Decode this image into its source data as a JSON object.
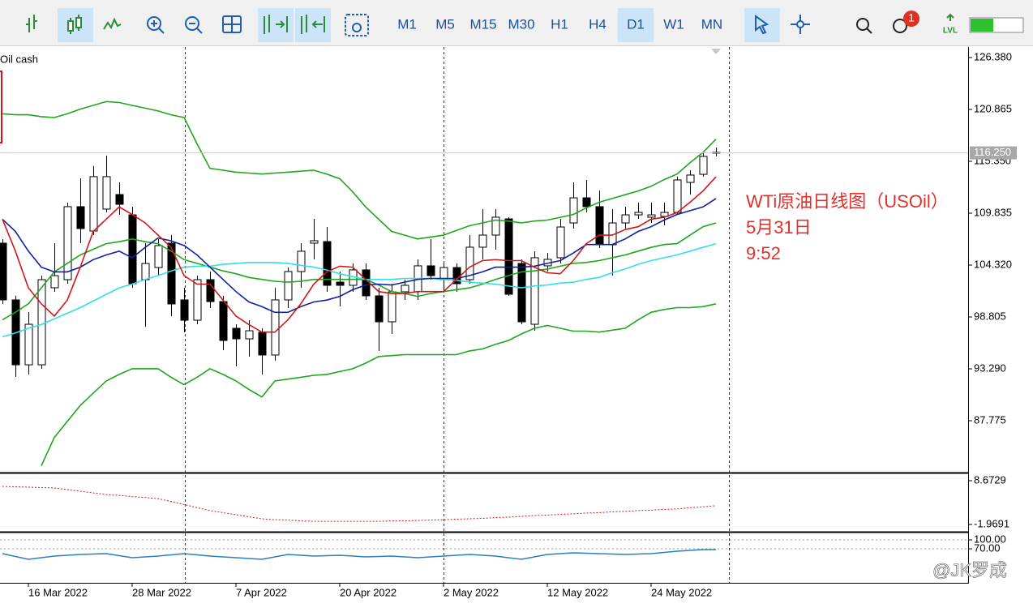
{
  "toolbar": {
    "timeframes": [
      "M1",
      "M5",
      "M15",
      "M30",
      "H1",
      "H4",
      "D1",
      "W1",
      "MN"
    ],
    "active": 6,
    "notifications": 1,
    "level_label": "LVL"
  },
  "watermark": "@JK罗成",
  "chart_data": [
    {
      "type": "candlestick",
      "title": "Oil cash",
      "annotations": [
        "WTi原油日线图（USOil）",
        "5月31日",
        "9:52"
      ],
      "categories": [
        null,
        null,
        "16 Mar 2022",
        null,
        null,
        null,
        null,
        null,
        null,
        null,
        "28 Mar 2022",
        null,
        null,
        null,
        null,
        null,
        null,
        null,
        "7 Apr 2022",
        null,
        null,
        null,
        null,
        null,
        null,
        null,
        "20 Apr 2022",
        null,
        null,
        null,
        null,
        null,
        null,
        null,
        "2 May 2022",
        null,
        null,
        null,
        null,
        null,
        null,
        null,
        "12 May 2022",
        null,
        null,
        null,
        null,
        null,
        null,
        null,
        "24 May 2022",
        null,
        null,
        null,
        null,
        null
      ],
      "open": [
        106.65,
        100.62,
        93.72,
        93.72,
        101.91,
        102.77,
        110.53,
        107.94,
        110.27,
        111.82,
        109.66,
        102.77,
        104.06,
        106.65,
        100.62,
        98.46,
        102.77,
        100.44,
        97.6,
        96.48,
        97.17,
        94.76,
        100.62,
        103.63,
        106.65,
        106.82,
        102.51,
        102.17,
        103.81,
        101.05,
        98.29,
        101.48,
        101.48,
        104.24,
        102.77,
        104.06,
        102.77,
        106.22,
        107.51,
        109.23,
        104.49,
        98.03,
        104.24,
        105.1,
        108.8,
        111.47,
        110.53,
        106.48,
        108.8,
        109.66,
        109.41,
        109.49,
        109.92,
        113.11,
        113.97,
        116.3
      ],
      "high": [
        107.08,
        101.05,
        99.32,
        103.2,
        106.65,
        110.96,
        113.54,
        114.84,
        115.96,
        113.11,
        110.53,
        106.65,
        107.08,
        107.51,
        101.91,
        103.2,
        103.63,
        101.05,
        98.03,
        98.46,
        97.6,
        101.91,
        104.06,
        106.65,
        109.23,
        108.37,
        103.63,
        104.49,
        104.49,
        101.91,
        102.34,
        102.77,
        104.93,
        107.08,
        104.49,
        104.49,
        107.51,
        110.27,
        110.27,
        109.41,
        104.93,
        105.79,
        105.61,
        109.23,
        113.11,
        113.37,
        112.25,
        110.27,
        110.53,
        110.96,
        110.96,
        110.96,
        113.72,
        114.4,
        116.3,
        116.82
      ],
      "low": [
        100.19,
        92.43,
        92.69,
        93.29,
        101.48,
        102.34,
        106.65,
        107.51,
        109.92,
        109.66,
        101.91,
        97.77,
        103.2,
        98.89,
        97.17,
        98.03,
        99.76,
        95.27,
        93.55,
        94.59,
        92.69,
        94.15,
        99.76,
        101.91,
        104.93,
        101.48,
        99.93,
        101.48,
        100.62,
        95.19,
        97.0,
        100.62,
        100.62,
        102.77,
        101.48,
        101.48,
        102.34,
        104.93,
        105.96,
        101.05,
        98.03,
        97.34,
        103.63,
        104.49,
        108.2,
        109.92,
        106.13,
        103.2,
        108.2,
        109.23,
        108.8,
        108.54,
        109.66,
        111.82,
        113.72,
        115.87
      ],
      "close": [
        100.62,
        93.72,
        98.03,
        102.77,
        103.2,
        110.53,
        108.2,
        113.72,
        113.72,
        110.78,
        102.34,
        104.49,
        106.39,
        100.19,
        98.46,
        102.77,
        100.44,
        96.31,
        96.48,
        97.34,
        94.76,
        100.62,
        103.63,
        105.79,
        106.91,
        102.17,
        102.17,
        103.81,
        101.05,
        98.29,
        101.48,
        102.17,
        104.24,
        103.2,
        104.06,
        102.34,
        106.22,
        107.51,
        109.41,
        101.22,
        98.29,
        105.1,
        104.93,
        108.37,
        111.47,
        110.53,
        106.48,
        108.8,
        109.66,
        109.92,
        109.66,
        109.92,
        113.37,
        113.89,
        115.87,
        116.25
      ],
      "up_color": "#ffffff",
      "down_color": "#000000",
      "series": [
        {
          "color": "#1fa51f",
          "values": [
            120.4,
            120.3,
            120.3,
            120.1,
            120.0,
            120.4,
            120.9,
            121.3,
            121.7,
            121.6,
            121.3,
            121.0,
            120.7,
            120.3,
            120.0,
            117.2,
            114.6,
            114.4,
            114.2,
            114.1,
            114.0,
            114.1,
            114.2,
            114.3,
            114.4,
            114.0,
            113.5,
            112.1,
            110.5,
            109.2,
            107.9,
            107.5,
            107.1,
            107.3,
            107.5,
            108.0,
            108.5,
            108.8,
            109.1,
            109.0,
            108.8,
            109.0,
            109.1,
            109.4,
            109.7,
            110.4,
            111.0,
            111.4,
            111.8,
            112.2,
            112.7,
            113.4,
            114.0,
            115.2,
            116.3,
            117.7
          ]
        },
        {
          "color": "#1fa51f",
          "values": [
            98.5,
            99.3,
            100.2,
            101.9,
            103.6,
            104.5,
            105.4,
            106.0,
            106.6,
            106.8,
            107.1,
            106.8,
            106.6,
            105.8,
            104.9,
            104.5,
            104.1,
            103.7,
            103.4,
            103.0,
            102.8,
            102.6,
            102.5,
            102.6,
            102.8,
            102.8,
            102.8,
            102.8,
            102.8,
            102.2,
            101.5,
            101.3,
            101.0,
            101.3,
            101.5,
            101.7,
            101.9,
            102.3,
            102.8,
            103.2,
            103.6,
            103.7,
            103.9,
            104.2,
            104.5,
            104.6,
            104.8,
            105.1,
            105.4,
            105.8,
            106.2,
            106.5,
            106.6,
            107.5,
            108.4,
            108.8
          ]
        },
        {
          "color": "#1fa51f",
          "values": [
            null,
            null,
            null,
            83.0,
            86.0,
            87.7,
            89.4,
            90.7,
            92.0,
            92.7,
            93.3,
            93.3,
            93.3,
            92.4,
            91.6,
            92.4,
            93.3,
            92.7,
            92.0,
            91.1,
            90.3,
            92.0,
            92.2,
            92.4,
            92.6,
            92.7,
            93.0,
            93.3,
            93.9,
            94.6,
            94.7,
            94.8,
            94.8,
            94.8,
            94.8,
            94.8,
            95.2,
            95.4,
            95.9,
            96.3,
            97.0,
            97.6,
            97.9,
            97.6,
            97.3,
            97.3,
            97.2,
            97.4,
            97.6,
            98.5,
            99.3,
            99.6,
            99.8,
            99.8,
            99.9,
            100.2
          ]
        },
        {
          "color": "#30e0e8",
          "values": [
            96.7,
            97.1,
            97.6,
            98.0,
            98.6,
            99.2,
            99.8,
            100.5,
            101.2,
            101.9,
            102.3,
            102.8,
            103.2,
            103.7,
            104.1,
            104.2,
            104.2,
            104.4,
            104.5,
            104.6,
            104.6,
            104.6,
            104.5,
            104.3,
            104.1,
            103.8,
            103.4,
            103.1,
            102.8,
            102.8,
            102.8,
            102.9,
            102.9,
            102.9,
            102.8,
            102.7,
            102.5,
            102.4,
            102.3,
            102.1,
            101.9,
            102.1,
            102.2,
            102.4,
            102.5,
            102.8,
            103.0,
            103.5,
            103.9,
            104.4,
            104.8,
            105.1,
            105.4,
            105.8,
            106.2,
            106.6
          ]
        },
        {
          "color": "#1020a0",
          "values": [
            109.2,
            107.9,
            105.8,
            104.1,
            103.6,
            103.6,
            104.1,
            104.9,
            105.4,
            105.8,
            105.1,
            106.2,
            107.2,
            106.9,
            106.4,
            105.4,
            104.1,
            102.8,
            101.5,
            100.4,
            99.9,
            99.3,
            99.3,
            99.9,
            100.4,
            100.6,
            101.0,
            101.7,
            102.2,
            102.3,
            102.2,
            102.5,
            102.8,
            102.9,
            102.9,
            102.9,
            103.2,
            103.6,
            104.1,
            104.1,
            104.1,
            104.2,
            104.5,
            104.8,
            105.6,
            106.5,
            106.5,
            106.5,
            107.1,
            107.9,
            108.4,
            109.1,
            109.7,
            110.1,
            110.5,
            111.4
          ]
        },
        {
          "color": "#d01818",
          "values": [
            109.2,
            105.8,
            101.9,
            100.2,
            98.9,
            100.6,
            104.1,
            107.9,
            109.2,
            110.5,
            109.7,
            108.8,
            107.5,
            106.2,
            103.2,
            102.3,
            102.3,
            100.6,
            98.9,
            98.0,
            97.2,
            97.2,
            98.5,
            100.2,
            102.3,
            103.6,
            104.2,
            104.1,
            102.8,
            101.5,
            101.3,
            101.3,
            101.5,
            101.5,
            101.5,
            102.8,
            104.1,
            104.8,
            104.9,
            104.8,
            104.8,
            104.1,
            103.5,
            103.4,
            104.8,
            106.6,
            107.5,
            107.5,
            108.1,
            108.4,
            109.2,
            109.4,
            109.9,
            111.0,
            112.2,
            113.7
          ]
        }
      ],
      "current_price": {
        "value": 116.25,
        "label": "116.250"
      },
      "ylim": [
        82.35,
        127.5
      ],
      "yticks": [
        {
          "value": 126.38,
          "label": "126.380"
        },
        {
          "value": 120.865,
          "label": "120.865"
        },
        {
          "value": 115.35,
          "label": "115.350"
        },
        {
          "value": 109.835,
          "label": "109.835"
        },
        {
          "value": 104.32,
          "label": "104.320"
        },
        {
          "value": 98.805,
          "label": "98.805"
        },
        {
          "value": 93.29,
          "label": "93.290"
        },
        {
          "value": 87.775,
          "label": "87.775"
        }
      ]
    },
    {
      "type": "line",
      "line_style": "dotted",
      "series": [
        {
          "color": "#d01818",
          "values": [
            7.3,
            7.2,
            7.1,
            7.0,
            6.9,
            6.5,
            6.1,
            5.7,
            5.3,
            5.1,
            4.8,
            4.6,
            4.3,
            3.6,
            2.9,
            2.1,
            1.4,
            0.9,
            0.4,
            -0.1,
            -0.6,
            -0.8,
            -0.9,
            -1.1,
            -1.2,
            -1.2,
            -1.2,
            -1.2,
            -1.2,
            -1.2,
            -1.1,
            -1.1,
            -1.0,
            -0.9,
            -0.8,
            -0.7,
            -0.6,
            -0.5,
            -0.3,
            -0.2,
            0.0,
            0.2,
            0.3,
            0.5,
            0.6,
            0.8,
            0.9,
            1.1,
            1.2,
            1.4,
            1.5,
            1.7,
            1.8,
            2.1,
            2.3,
            2.6
          ]
        }
      ],
      "ylim": [
        -3.55,
        10.25
      ],
      "yticks": [
        8.6729,
        -1.9691
      ]
    },
    {
      "type": "line",
      "line_style": "solid",
      "grid": true,
      "series": [
        {
          "color": "#2a7fc0",
          "values": [
            53.6,
            44,
            34.5,
            40,
            45.5,
            48.2,
            50.9,
            52.3,
            53.6,
            46.8,
            40.0,
            42.7,
            45.5,
            49.6,
            53.6,
            49.6,
            45.5,
            42.7,
            40.0,
            37.3,
            34.5,
            42.7,
            50.9,
            48.2,
            45.5,
            46.8,
            48.2,
            45.5,
            42.7,
            44.1,
            45.5,
            42.7,
            40.0,
            42.7,
            45.5,
            48.2,
            50.9,
            48.2,
            45.5,
            40.0,
            34.5,
            42.7,
            50.9,
            53.6,
            56.4,
            55.0,
            53.6,
            52.3,
            50.9,
            52.3,
            53.6,
            57.7,
            61.8,
            64.6,
            67.3,
            67.3
          ]
        }
      ],
      "ylim": [
        -41.8,
        121.8
      ],
      "yticks": [
        {
          "value": 100,
          "label": "100.00"
        },
        {
          "value": 70,
          "label": "70.00"
        }
      ]
    }
  ]
}
